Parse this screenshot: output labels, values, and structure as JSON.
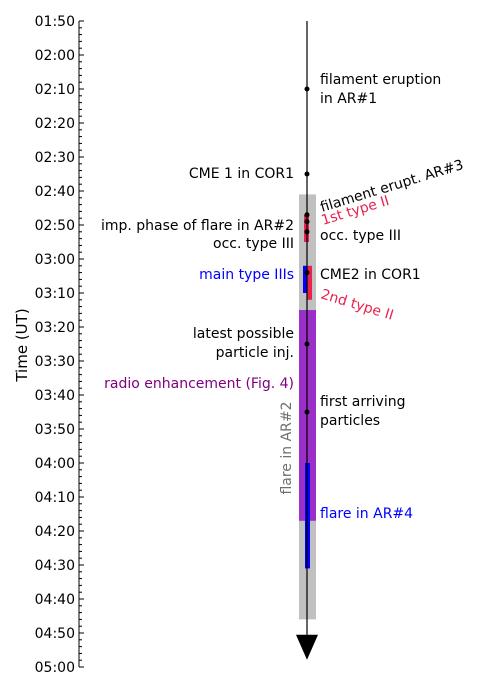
{
  "chart_data": {
    "type": "timeline",
    "ylabel": "Time (UT)",
    "time_range": [
      "01:50",
      "05:00"
    ],
    "tick_labels": [
      "01:50",
      "02:00",
      "02:10",
      "02:20",
      "02:30",
      "02:40",
      "02:50",
      "03:00",
      "03:10",
      "03:20",
      "03:30",
      "03:40",
      "03:50",
      "04:00",
      "04:10",
      "04:20",
      "04:30",
      "04:40",
      "04:50",
      "05:00"
    ],
    "colors": {
      "axis": "#000000",
      "gray_band": "#c0c0c0",
      "purple_band": "#9b30c8",
      "blue": "#0000ff",
      "red": "#e8224e",
      "purple_text": "#800080",
      "gray_text": "#707070"
    },
    "bars": [
      {
        "id": "flare-ar2",
        "start": "02:41",
        "end": "04:46",
        "color": "gray_band"
      },
      {
        "id": "radio-enhancement",
        "start": "03:15",
        "end": "04:17",
        "color": "purple_band"
      },
      {
        "id": "main-type-iii",
        "start": "03:02",
        "end": "03:10",
        "color": "blue"
      },
      {
        "id": "first-type-ii",
        "start": "02:47",
        "end": "02:55",
        "color": "red"
      },
      {
        "id": "second-type-ii",
        "start": "03:02",
        "end": "03:12",
        "color": "red"
      },
      {
        "id": "flare-ar4",
        "start": "04:00",
        "end": "04:31",
        "color": "blue"
      }
    ],
    "events": [
      {
        "time": "02:10",
        "label": "filament eruption"
      },
      {
        "time": "02:35",
        "label": "CME 1 in COR1"
      },
      {
        "time": "02:47",
        "label": "filament erupt."
      },
      {
        "time": "02:49",
        "label": "occ. type III"
      },
      {
        "time": "02:52",
        "label": "occ. type III"
      },
      {
        "time": "03:04",
        "label": "CME2 in COR1"
      },
      {
        "time": "03:25",
        "label": "latest possible particle inj."
      },
      {
        "time": "03:45",
        "label": "first arriving particles"
      }
    ],
    "labels": {
      "filament_eruption_1": "filament eruption",
      "filament_eruption_2": "in AR#1",
      "cme1": "CME 1 in COR1",
      "filament_erupt_ar3": "filament erupt. AR#3",
      "first_type_ii": "1st type II",
      "imp_phase_1": "imp. phase of flare in AR#2",
      "imp_phase_2": "occ. type III",
      "occ_type_iii": "occ. type III",
      "main_type_iii": "main type IIIs",
      "cme2": "CME2 in COR1",
      "second_type_ii": "2nd type II",
      "latest_inj_1": "latest possible",
      "latest_inj_2": "particle inj.",
      "radio_enhancement": "radio enhancement (Fig. 4)",
      "first_particles_1": "first arriving",
      "first_particles_2": "particles",
      "flare_ar2": "flare in AR#2",
      "flare_ar4": "flare in AR#4"
    }
  }
}
